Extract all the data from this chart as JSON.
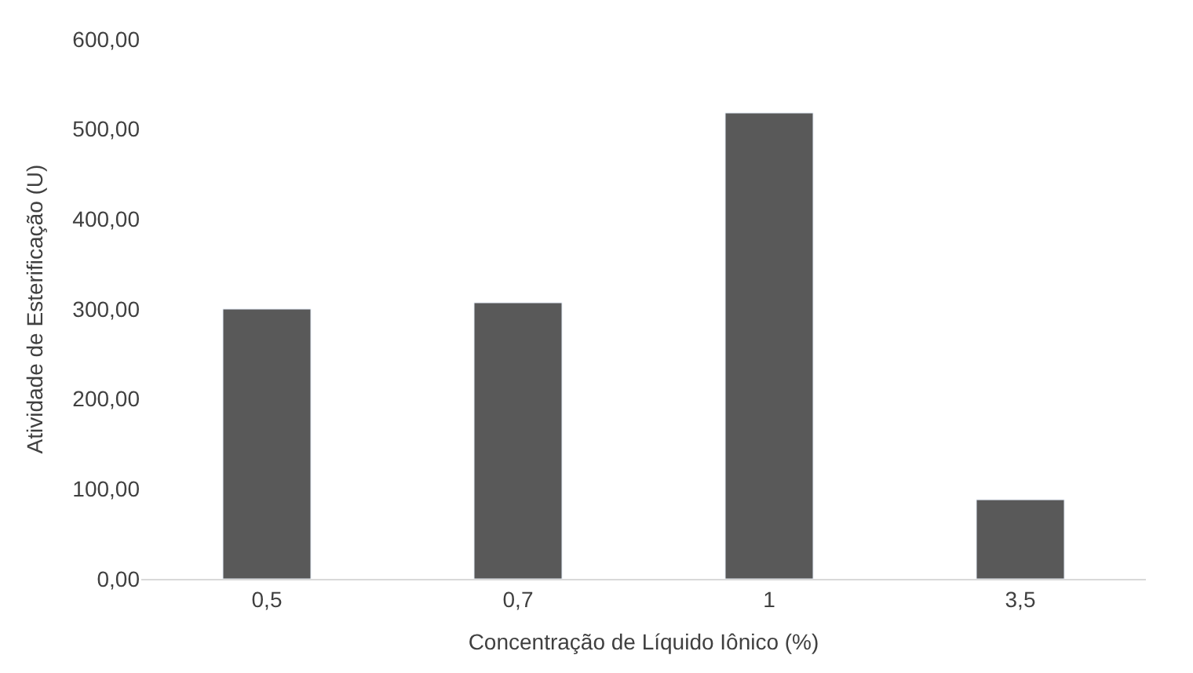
{
  "chart_data": {
    "type": "bar",
    "xlabel": "Concentração de Líquido Iônico (%)",
    "ylabel": "Atividade de Esterificação (U)",
    "categories": [
      "0,5",
      "0,7",
      "1",
      "3,5"
    ],
    "values": [
      300,
      307,
      518,
      88
    ],
    "color": "#595959",
    "ylim": [
      0,
      600
    ],
    "yticks": [
      {
        "value": 0,
        "label": "0,00"
      },
      {
        "value": 100,
        "label": "100,00"
      },
      {
        "value": 200,
        "label": "200,00"
      },
      {
        "value": 300,
        "label": "300,00"
      },
      {
        "value": 400,
        "label": "400,00"
      },
      {
        "value": 500,
        "label": "500,00"
      },
      {
        "value": 600,
        "label": "600,00"
      }
    ],
    "grid": false,
    "legend": false
  }
}
